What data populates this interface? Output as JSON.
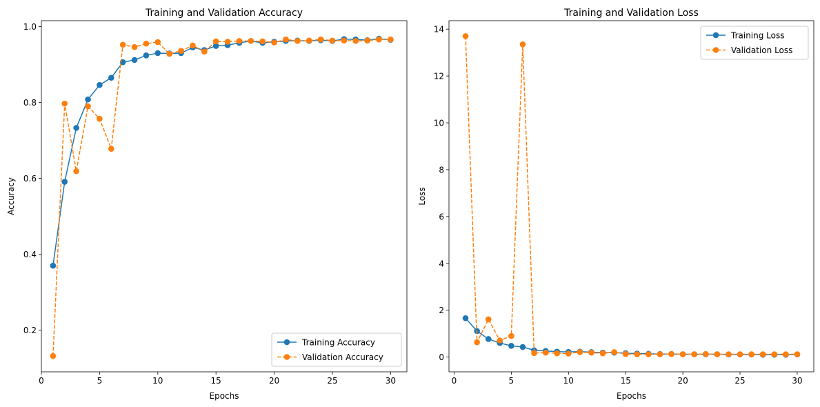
{
  "chart_data": [
    {
      "type": "line",
      "title": "Training and Validation Accuracy",
      "xlabel": "Epochs",
      "ylabel": "Accuracy",
      "xlim": [
        0,
        31.4
      ],
      "ylim": [
        0.0904,
        1.0154
      ],
      "xticks": [
        0,
        5,
        10,
        15,
        20,
        25,
        30
      ],
      "yticks": [
        0.2,
        0.4,
        0.6,
        0.8,
        1.0
      ],
      "ytick_labels": [
        "0.2",
        "0.4",
        "0.6",
        "0.8",
        "1.0"
      ],
      "legend_position": "lower-right",
      "x": [
        1,
        2,
        3,
        4,
        5,
        6,
        7,
        8,
        9,
        10,
        11,
        12,
        13,
        14,
        15,
        16,
        17,
        18,
        19,
        20,
        21,
        22,
        23,
        24,
        25,
        26,
        27,
        28,
        29,
        30
      ],
      "series": [
        {
          "name": "Training Accuracy",
          "color": "#1f77b4",
          "style": "solid",
          "values": [
            0.37,
            0.591,
            0.733,
            0.808,
            0.846,
            0.865,
            0.906,
            0.912,
            0.924,
            0.93,
            0.929,
            0.93,
            0.945,
            0.938,
            0.949,
            0.951,
            0.957,
            0.962,
            0.957,
            0.96,
            0.962,
            0.963,
            0.962,
            0.964,
            0.962,
            0.967,
            0.966,
            0.964,
            0.968,
            0.965
          ]
        },
        {
          "name": "Validation Accuracy",
          "color": "#ff7f0e",
          "style": "dashed",
          "values": [
            0.132,
            0.797,
            0.619,
            0.79,
            0.757,
            0.678,
            0.952,
            0.946,
            0.955,
            0.959,
            0.928,
            0.936,
            0.95,
            0.934,
            0.961,
            0.96,
            0.962,
            0.962,
            0.961,
            0.958,
            0.966,
            0.962,
            0.963,
            0.966,
            0.963,
            0.963,
            0.962,
            0.963,
            0.966,
            0.966
          ]
        }
      ]
    },
    {
      "type": "line",
      "title": "Training and Validation Loss",
      "xlabel": "Epochs",
      "ylabel": "Loss",
      "xlim": [
        -0.45,
        31.45
      ],
      "ylim": [
        -0.63,
        14.36
      ],
      "xticks": [
        0,
        5,
        10,
        15,
        20,
        25,
        30
      ],
      "yticks": [
        0,
        2,
        4,
        6,
        8,
        10,
        12,
        14
      ],
      "ytick_labels": [
        "0",
        "2",
        "4",
        "6",
        "8",
        "10",
        "12",
        "14"
      ],
      "legend_position": "upper-right",
      "x": [
        1,
        2,
        3,
        4,
        5,
        6,
        7,
        8,
        9,
        10,
        11,
        12,
        13,
        14,
        15,
        16,
        17,
        18,
        19,
        20,
        21,
        22,
        23,
        24,
        25,
        26,
        27,
        28,
        29,
        30
      ],
      "series": [
        {
          "name": "Training Loss",
          "color": "#1f77b4",
          "style": "solid",
          "values": [
            1.66,
            1.11,
            0.77,
            0.6,
            0.48,
            0.43,
            0.29,
            0.26,
            0.23,
            0.22,
            0.23,
            0.21,
            0.19,
            0.19,
            0.16,
            0.15,
            0.14,
            0.13,
            0.13,
            0.12,
            0.12,
            0.12,
            0.12,
            0.11,
            0.11,
            0.11,
            0.1,
            0.1,
            0.1,
            0.11
          ]
        },
        {
          "name": "Validation Loss",
          "color": "#ff7f0e",
          "style": "dashed",
          "values": [
            13.7,
            0.63,
            1.61,
            0.71,
            0.9,
            13.35,
            0.17,
            0.19,
            0.16,
            0.15,
            0.21,
            0.19,
            0.16,
            0.21,
            0.13,
            0.12,
            0.12,
            0.12,
            0.13,
            0.12,
            0.12,
            0.13,
            0.12,
            0.12,
            0.12,
            0.12,
            0.12,
            0.12,
            0.12,
            0.12
          ]
        }
      ]
    }
  ]
}
